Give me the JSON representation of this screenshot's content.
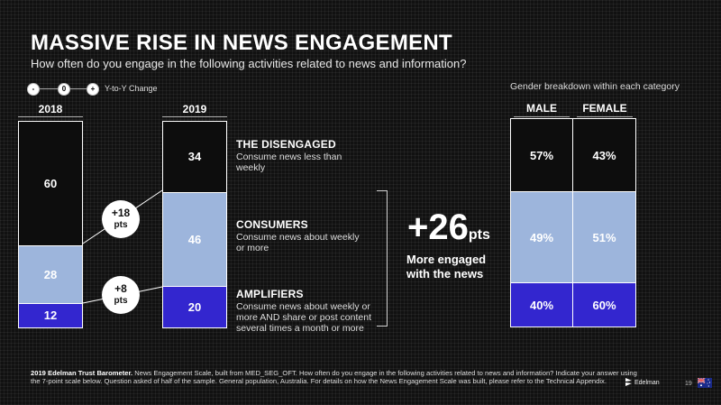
{
  "title": "MASSIVE RISE IN NEWS ENGAGEMENT",
  "subtitle": "How often do you engage in the following activities related to news and information?",
  "legend": {
    "minus": "-",
    "zero": "0",
    "plus": "+",
    "label": "Y-to-Y Change"
  },
  "colors": {
    "disengaged": "#0d0d0d",
    "consumers": "#9db5dc",
    "amplifiers": "#3326cf",
    "border": "#ffffff"
  },
  "chart_data": [
    {
      "type": "bar",
      "stacked": true,
      "categories": [
        "2018",
        "2019"
      ],
      "series": [
        {
          "name": "THE DISENGAGED",
          "values": [
            60,
            34
          ]
        },
        {
          "name": "CONSUMERS",
          "values": [
            28,
            46
          ]
        },
        {
          "name": "AMPLIFIERS",
          "values": [
            12,
            20
          ]
        }
      ],
      "changes": [
        {
          "between": "CONSUMERS",
          "value": "+18",
          "unit": "pts"
        },
        {
          "between": "AMPLIFIERS",
          "value": "+8",
          "unit": "pts"
        }
      ]
    },
    {
      "type": "table",
      "caption": "Gender breakdown within each category",
      "columns": [
        "MALE",
        "FEMALE"
      ],
      "rows": [
        {
          "segment": "THE DISENGAGED",
          "values": [
            "57%",
            "43%"
          ]
        },
        {
          "segment": "CONSUMERS",
          "values": [
            "49%",
            "51%"
          ]
        },
        {
          "segment": "AMPLIFIERS",
          "values": [
            "40%",
            "60%"
          ]
        }
      ]
    }
  ],
  "segments": [
    {
      "heading": "THE DISENGAGED",
      "description": "Consume news less than weekly"
    },
    {
      "heading": "CONSUMERS",
      "description": "Consume news about weekly or more"
    },
    {
      "heading": "AMPLIFIERS",
      "description": "Consume news about weekly or more AND share or post content several times a month or more"
    }
  ],
  "bubbles": [
    {
      "value": "+18",
      "unit": "pts"
    },
    {
      "value": "+8",
      "unit": "pts"
    }
  ],
  "highlight": {
    "value": "+26",
    "unit": "pts",
    "text": "More engaged with the news"
  },
  "gender": {
    "caption": "Gender breakdown within each category",
    "male": "MALE",
    "female": "FEMALE",
    "rows": [
      [
        "57%",
        "43%"
      ],
      [
        "49%",
        "51%"
      ],
      [
        "40%",
        "60%"
      ]
    ]
  },
  "footer": {
    "bold": "2019 Edelman Trust Barometer.",
    "text": " News Engagement Scale, built from MED_SEG_OFT. How often do you engage in the following activities related to news and information? Indicate your answer using the 7-point scale below. Question asked of half of the sample. General population, Australia. For details on how the News Engagement Scale was built, please refer to the Technical Appendix."
  },
  "logo": "Edelman",
  "page_number": "19"
}
